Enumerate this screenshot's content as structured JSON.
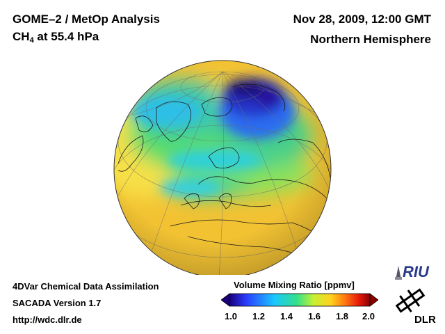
{
  "header": {
    "title_line1": "GOME–2 / MetOp Analysis",
    "species": "CH",
    "species_subscript": "4",
    "species_level": " at 55.4 hPa",
    "datetime": "Nov 28, 2009, 12:00 GMT",
    "region": "Northern Hemisphere"
  },
  "footer": {
    "line1": "4DVar Chemical Data Assimilation",
    "line2": "SACADA Version 1.7",
    "line3": "http://wdc.dlr.de"
  },
  "colorbar": {
    "title": "Volume Mixing Ratio [ppmv]",
    "ticks": [
      "1.0",
      "1.2",
      "1.4",
      "1.6",
      "1.8",
      "2.0"
    ],
    "min": 1.0,
    "max": 2.0,
    "colors": [
      "#1a007a",
      "#2a3cff",
      "#19c8ff",
      "#35e08a",
      "#c8f032",
      "#ffd21e",
      "#ff7a10",
      "#e81a0a",
      "#8a0000"
    ]
  },
  "logos": {
    "riu": "RIU",
    "dlr": "DLR"
  }
}
